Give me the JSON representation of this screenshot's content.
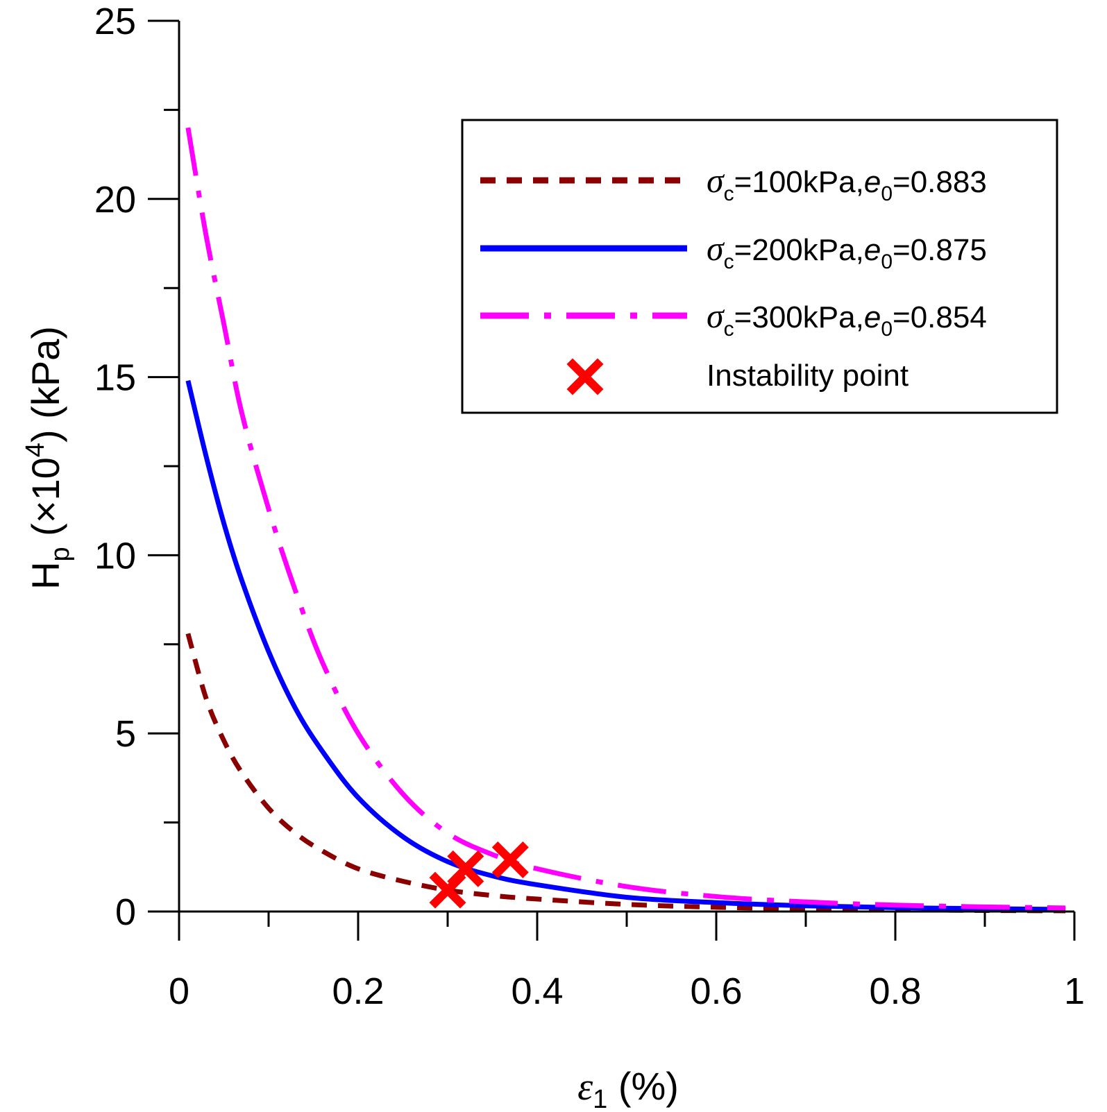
{
  "chart_data": {
    "type": "line",
    "xlabel": "ε1 (%)",
    "ylabel": "Hp (×10^4) (kPa)",
    "xlabel_parts": {
      "symbol": "ε",
      "sub": "1",
      "unit": " (%)"
    },
    "ylabel_parts": {
      "base": "H",
      "sub": "p",
      "mult_open": " (×10",
      "sup": "4",
      "mult_close": ")",
      "unit": " (kPa)"
    },
    "xlim": [
      0,
      1
    ],
    "ylim": [
      0,
      25
    ],
    "x_ticks": [
      "0",
      "0.2",
      "0.4",
      "0.6",
      "0.8",
      "1"
    ],
    "y_ticks": [
      "0",
      "5",
      "10",
      "15",
      "20",
      "25"
    ],
    "grid": false,
    "legend_position": "top-right",
    "series": [
      {
        "name": "σc=100kPa,e0=0.883",
        "label_parts": {
          "sym": "σ",
          "sub1": "c",
          "mid": "=100kPa,",
          "sym2": "e",
          "sub2": "0",
          "tail": "=0.883"
        },
        "color": "#8b0000",
        "style": "dashed",
        "x": [
          0.01,
          0.03,
          0.05,
          0.07,
          0.1,
          0.13,
          0.16,
          0.2,
          0.25,
          0.3,
          0.35,
          0.4,
          0.5,
          0.6,
          0.7,
          0.8,
          0.9,
          0.99
        ],
        "y": [
          7.8,
          6.0,
          4.8,
          3.9,
          2.9,
          2.2,
          1.7,
          1.2,
          0.85,
          0.6,
          0.45,
          0.35,
          0.2,
          0.12,
          0.08,
          0.05,
          0.03,
          0.02
        ]
      },
      {
        "name": "σc=200kPa,e0=0.875",
        "label_parts": {
          "sym": "σ",
          "sub1": "c",
          "mid": "=200kPa,",
          "sym2": "e",
          "sub2": "0",
          "tail": "=0.875"
        },
        "color": "#0000ff",
        "style": "solid",
        "x": [
          0.01,
          0.03,
          0.05,
          0.07,
          0.1,
          0.13,
          0.16,
          0.2,
          0.25,
          0.3,
          0.35,
          0.4,
          0.5,
          0.6,
          0.7,
          0.8,
          0.9,
          0.99
        ],
        "y": [
          14.9,
          12.8,
          10.9,
          9.3,
          7.3,
          5.7,
          4.5,
          3.2,
          2.1,
          1.4,
          1.0,
          0.75,
          0.4,
          0.25,
          0.16,
          0.11,
          0.08,
          0.06
        ]
      },
      {
        "name": "σc=300kPa,e0=0.854",
        "label_parts": {
          "sym": "σ",
          "sub1": "c",
          "mid": "=300kPa,",
          "sym2": "e",
          "sub2": "0",
          "tail": "=0.854"
        },
        "color": "#ff00ff",
        "style": "dashdot",
        "x": [
          0.01,
          0.03,
          0.05,
          0.07,
          0.1,
          0.13,
          0.16,
          0.2,
          0.25,
          0.3,
          0.35,
          0.4,
          0.5,
          0.6,
          0.7,
          0.8,
          0.9,
          0.99
        ],
        "y": [
          22.0,
          19.0,
          16.5,
          14.0,
          11.3,
          9.0,
          7.0,
          5.0,
          3.3,
          2.2,
          1.6,
          1.2,
          0.7,
          0.42,
          0.27,
          0.18,
          0.13,
          0.1
        ]
      }
    ],
    "instability_points": {
      "name": "Instability point",
      "color": "#ff0000",
      "marker": "x",
      "points": [
        {
          "x": 0.3,
          "y": 0.6
        },
        {
          "x": 0.32,
          "y": 1.2
        },
        {
          "x": 0.37,
          "y": 1.45
        }
      ]
    }
  }
}
